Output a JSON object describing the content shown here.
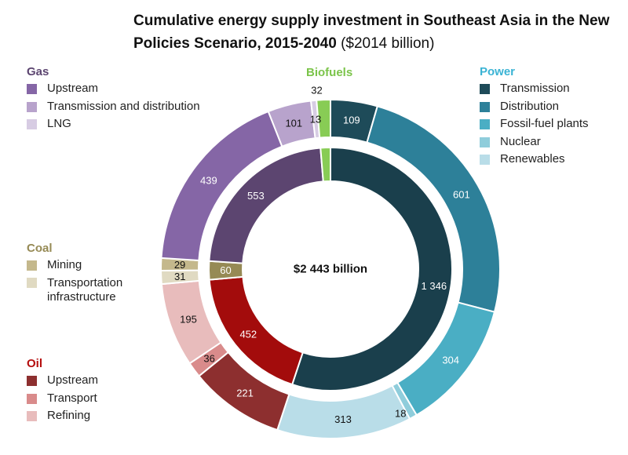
{
  "title": {
    "bold": "Cumulative energy supply investment in Southeast Asia in the New Policies Scenario, 2015-2040",
    "unit": "($2014 billion)"
  },
  "chart_data": {
    "type": "pie",
    "center_label": "$2 443 billion",
    "inner_ring": [
      {
        "name": "Power",
        "value": 1346,
        "label": "1 346",
        "color": "#1a3f4c"
      },
      {
        "name": "Oil",
        "value": 452,
        "label": "452",
        "color": "#a30c0c"
      },
      {
        "name": "Coal",
        "value": 60,
        "label": "60",
        "color": "#968a55"
      },
      {
        "name": "Gas",
        "value": 553,
        "label": "553",
        "color": "#5c4570"
      },
      {
        "name": "Biofuels",
        "value": 32,
        "label": "",
        "color": "#88cc55"
      }
    ],
    "outer_ring": [
      {
        "group": "Power",
        "name": "Transmission",
        "value": 109,
        "label": "109",
        "color": "#1e4b59"
      },
      {
        "group": "Power",
        "name": "Distribution",
        "value": 601,
        "label": "601",
        "color": "#2d8099"
      },
      {
        "group": "Power",
        "name": "Fossil-fuel plants",
        "value": 304,
        "label": "304",
        "color": "#4aaec4"
      },
      {
        "group": "Power",
        "name": "Nuclear",
        "value": 18,
        "label": "18",
        "color": "#8fcddb"
      },
      {
        "group": "Power",
        "name": "Renewables",
        "value": 313,
        "label": "313",
        "color": "#b9dde8"
      },
      {
        "group": "Oil",
        "name": "Upstream",
        "value": 221,
        "label": "221",
        "color": "#8d2f2f"
      },
      {
        "group": "Oil",
        "name": "Transport",
        "value": 36,
        "label": "36",
        "color": "#d98b8b"
      },
      {
        "group": "Oil",
        "name": "Refining",
        "value": 195,
        "label": "195",
        "color": "#e8bcbc"
      },
      {
        "group": "Coal",
        "name": "Transportation infrastructure",
        "value": 31,
        "label": "31",
        "color": "#e0dac2"
      },
      {
        "group": "Coal",
        "name": "Mining",
        "value": 29,
        "label": "29",
        "color": "#c4b88c"
      },
      {
        "group": "Gas",
        "name": "Upstream",
        "value": 439,
        "label": "439",
        "color": "#8566a6"
      },
      {
        "group": "Gas",
        "name": "Transmission and distribution",
        "value": 101,
        "label": "101",
        "color": "#b8a3cc"
      },
      {
        "group": "Gas",
        "name": "LNG",
        "value": 13,
        "label": "13",
        "color": "#d7cce3"
      },
      {
        "group": "Biofuels",
        "name": "Biofuels",
        "value": 32,
        "label": "32",
        "color": "#88cc55"
      }
    ]
  },
  "legend": {
    "gas": {
      "title": "Gas",
      "color": "#5c4570",
      "items": [
        {
          "label": "Upstream",
          "color": "#8566a6"
        },
        {
          "label": "Transmission and distribution",
          "color": "#b8a3cc"
        },
        {
          "label": "LNG",
          "color": "#d7cce3"
        }
      ]
    },
    "coal": {
      "title": "Coal",
      "color": "#968a55",
      "items": [
        {
          "label": "Mining",
          "color": "#c4b88c"
        },
        {
          "label": "Transportation infrastructure",
          "color": "#e0dac2"
        }
      ]
    },
    "oil": {
      "title": "Oil",
      "color": "#b50d0d",
      "items": [
        {
          "label": "Upstream",
          "color": "#8d2f2f"
        },
        {
          "label": "Transport",
          "color": "#d98b8b"
        },
        {
          "label": "Refining",
          "color": "#e8bcbc"
        }
      ]
    },
    "power": {
      "title": "Power",
      "color": "#3ab3d4",
      "items": [
        {
          "label": "Transmission",
          "color": "#1e4b59"
        },
        {
          "label": "Distribution",
          "color": "#2d8099"
        },
        {
          "label": "Fossil-fuel plants",
          "color": "#4aaec4"
        },
        {
          "label": "Nuclear",
          "color": "#8fcddb"
        },
        {
          "label": "Renewables",
          "color": "#b9dde8"
        }
      ]
    },
    "biofuels": {
      "title": "Biofuels",
      "color": "#7bc44a"
    }
  }
}
